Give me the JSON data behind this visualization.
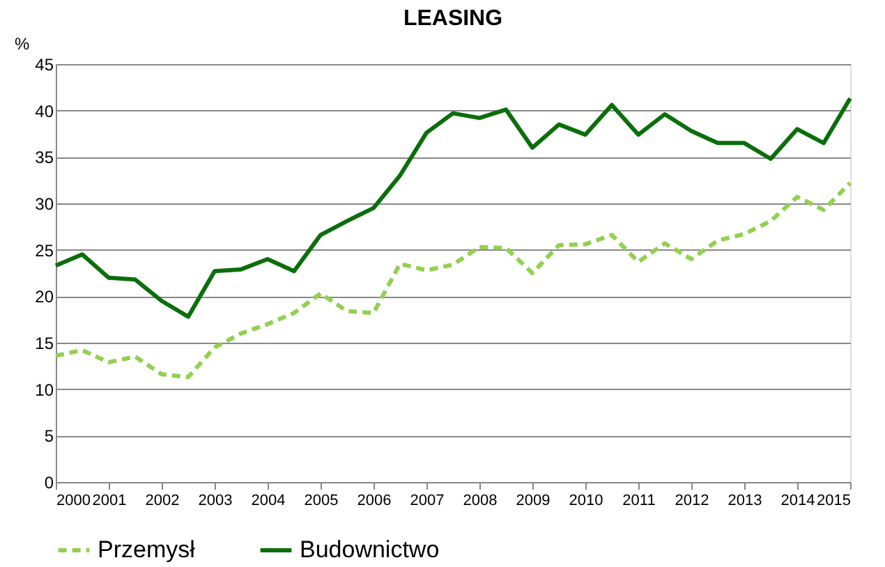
{
  "chart_data": {
    "type": "line",
    "title": "LEASING",
    "ylabel": "%",
    "x": [
      2000,
      2000.5,
      2001,
      2001.5,
      2002,
      2002.5,
      2003,
      2003.5,
      2004,
      2004.5,
      2005,
      2005.5,
      2006,
      2006.5,
      2007,
      2007.5,
      2008,
      2008.5,
      2009,
      2009.5,
      2010,
      2010.5,
      2011,
      2011.5,
      2012,
      2012.5,
      2013,
      2013.5,
      2014,
      2014.5,
      2015
    ],
    "series": [
      {
        "name": "Przemysł",
        "color": "#92d050",
        "line_style": "dashed",
        "values": [
          13.6,
          14.2,
          12.9,
          13.5,
          11.6,
          11.3,
          14.5,
          16,
          17,
          18.2,
          20.3,
          18.4,
          18.2,
          23.5,
          22.8,
          23.4,
          25.3,
          25.2,
          22.5,
          25.5,
          25.6,
          26.6,
          23.7,
          25.7,
          24,
          26,
          26.7,
          28.1,
          30.7,
          29.3,
          32.2
        ]
      },
      {
        "name": "Budownictwo",
        "color": "#0b6e0b",
        "line_style": "solid",
        "values": [
          23.3,
          24.5,
          22,
          21.8,
          19.5,
          17.8,
          22.7,
          22.9,
          24,
          22.7,
          26.6,
          28.1,
          29.5,
          33,
          37.6,
          39.7,
          39.2,
          40.1,
          36,
          38.5,
          37.4,
          40.6,
          37.4,
          39.6,
          37.8,
          36.5,
          36.5,
          34.8,
          38,
          36.5,
          41.3
        ]
      }
    ],
    "xlim": [
      2000,
      2015
    ],
    "xticks": [
      2000,
      2001,
      2002,
      2003,
      2004,
      2005,
      2006,
      2007,
      2008,
      2009,
      2010,
      2011,
      2012,
      2013,
      2014,
      2015
    ],
    "ylim": [
      0,
      45
    ],
    "yticks": [
      0,
      5,
      10,
      15,
      20,
      25,
      30,
      35,
      40,
      45
    ],
    "grid": "y",
    "legend": "bottom",
    "marker": "none"
  }
}
